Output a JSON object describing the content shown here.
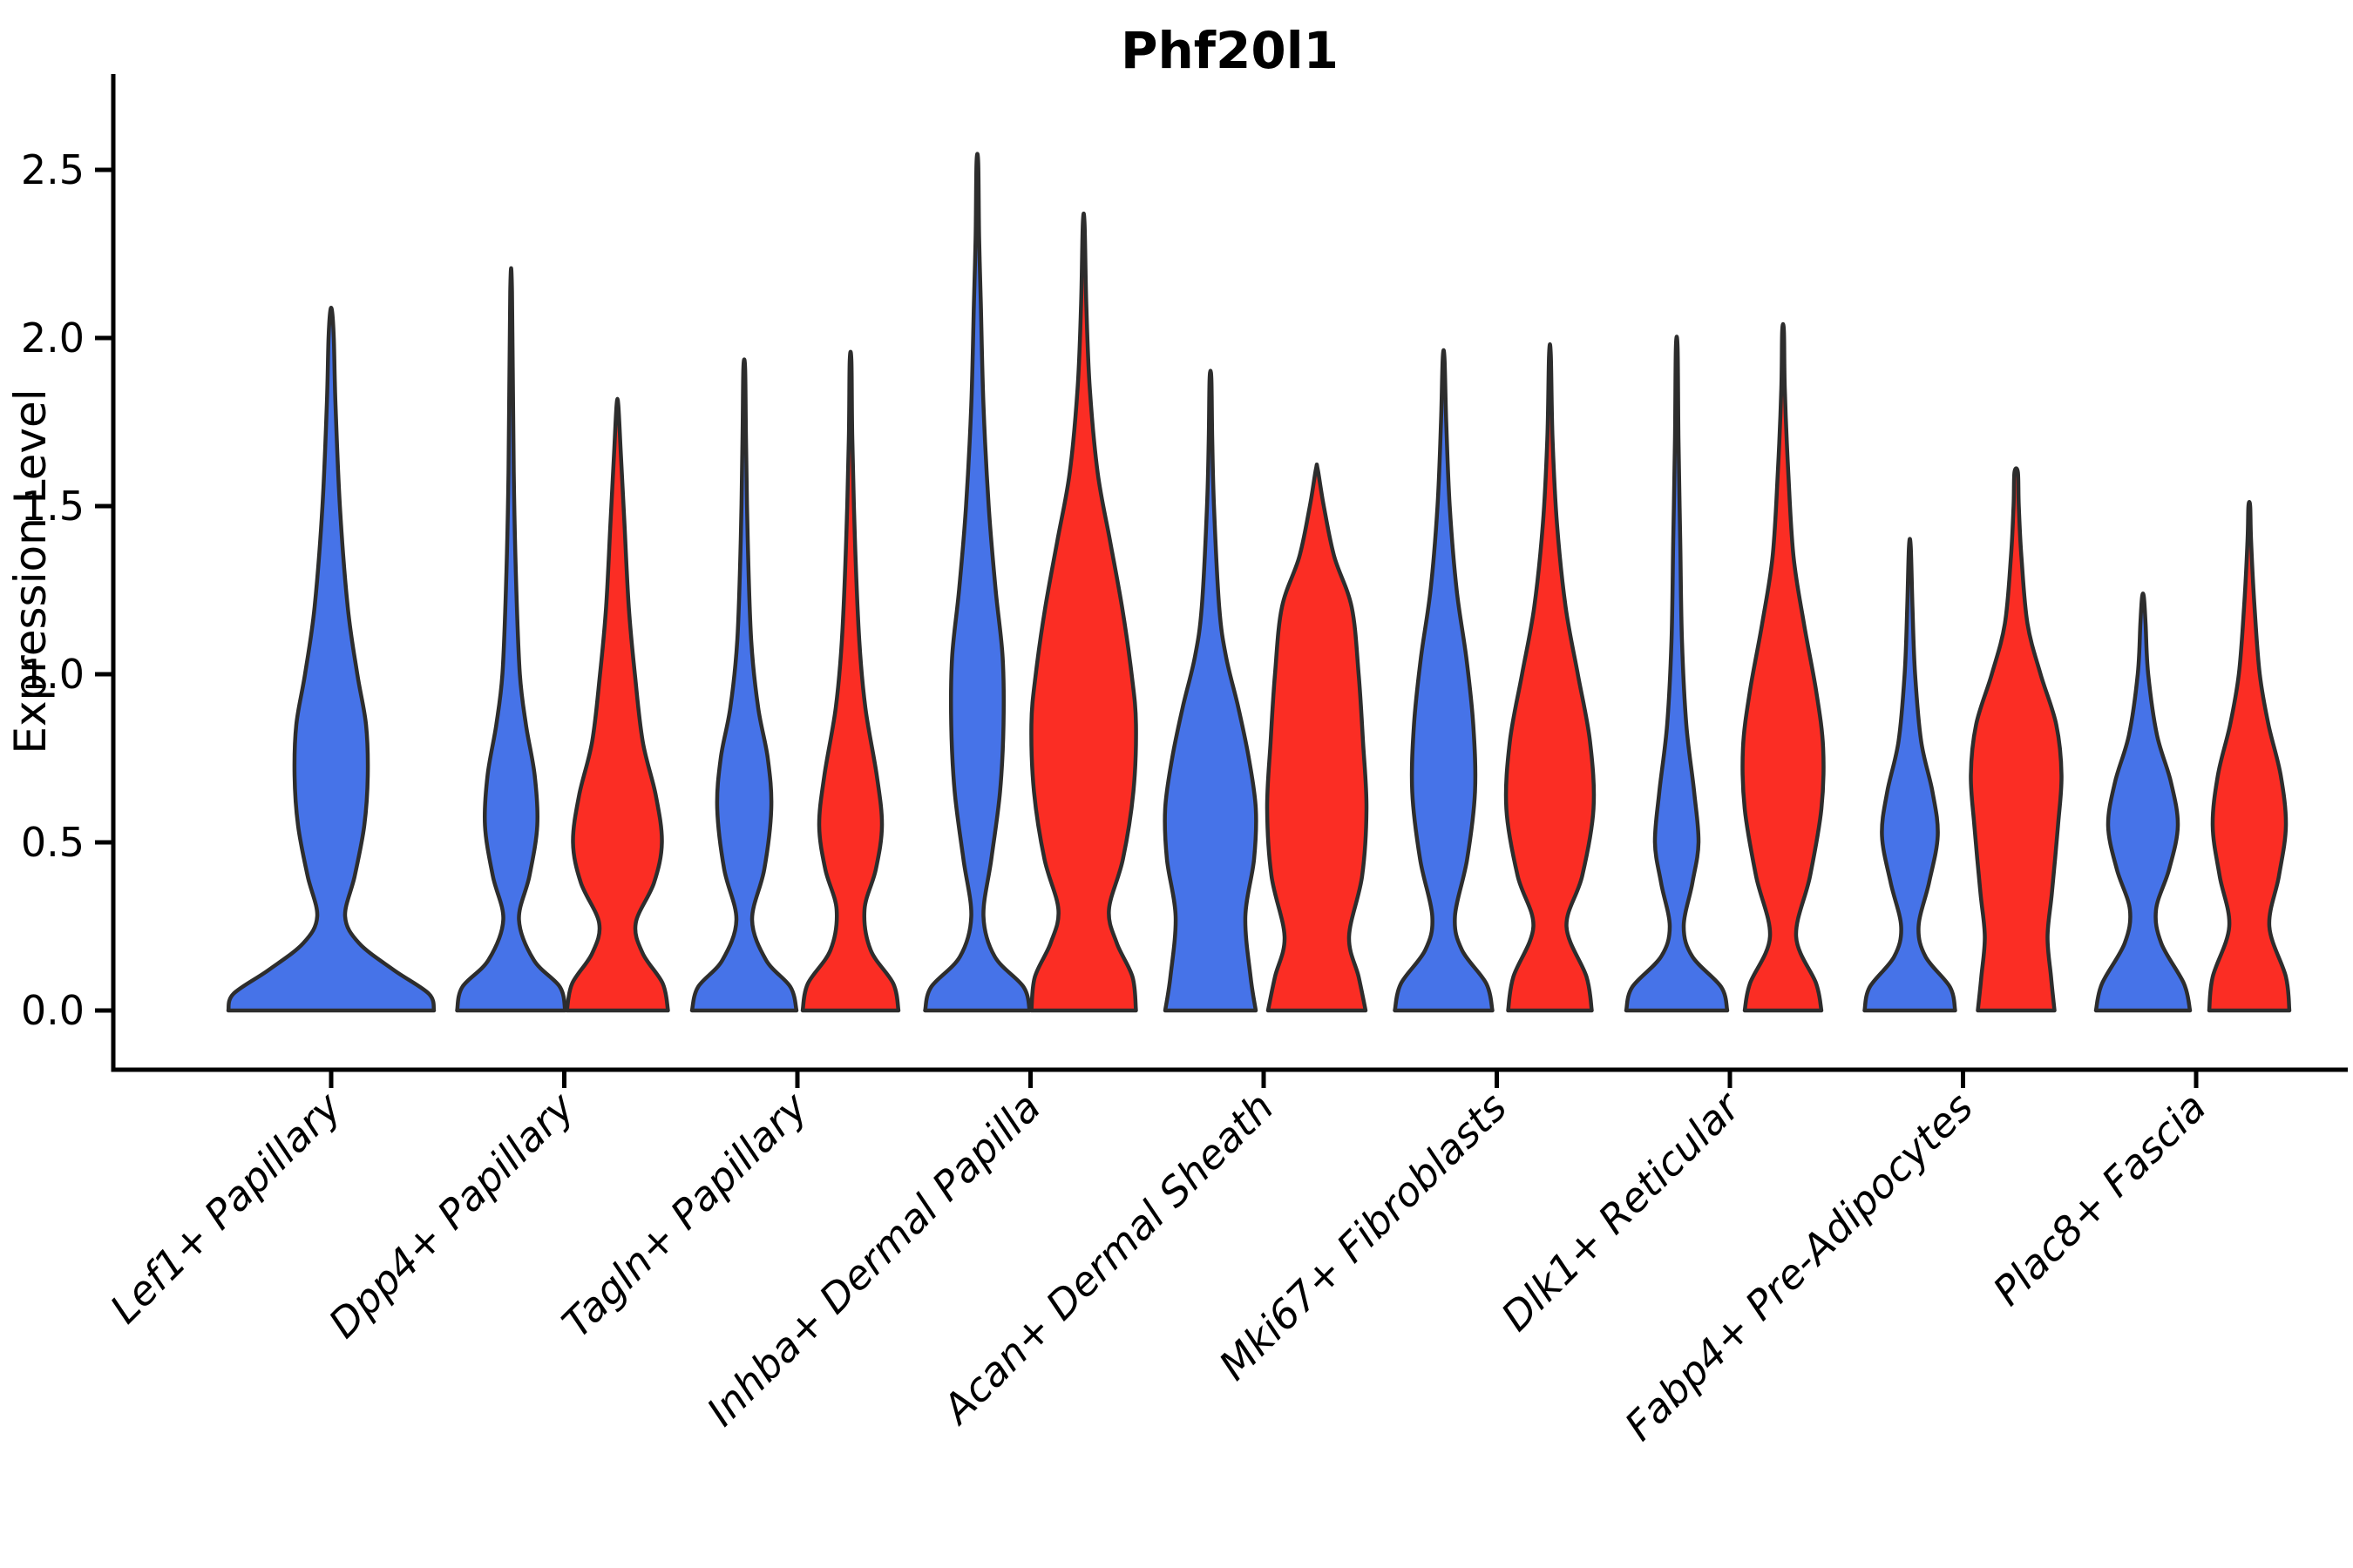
{
  "title": "Phf20l1",
  "y_axis": {
    "label": "Expression Level",
    "tick_labels": [
      "0.0",
      "0.5",
      "1.0",
      "1.5",
      "2.0",
      "2.5"
    ],
    "tick_values": [
      0.0,
      0.5,
      1.0,
      1.5,
      2.0,
      2.5
    ]
  },
  "x_axis": {
    "categories": [
      "Lef1+ Papillary",
      "Dpp4+ Papillary",
      "Tagln+ Papillary",
      "Inhba+ Dermal Papilla",
      "Acan+ Dermal Sheath",
      "Mki67+ Fibroblasts",
      "Dlk1+ Reticular",
      "Fabp4+ Pre-Adipocytes",
      "Plac8+ Fascia"
    ]
  },
  "colors": {
    "split_blue": "#4673E8",
    "split_red": "#FB2D24",
    "outline": "#2D2D2D",
    "axis": "#000000",
    "background": "#ffffff"
  },
  "chart_data": {
    "type": "violin",
    "title": "Phf20l1",
    "xlabel": "",
    "ylabel": "Expression Level",
    "ylim": [
      0,
      2.6
    ],
    "grid": false,
    "legend": "none",
    "categories": [
      "Lef1+ Papillary",
      "Dpp4+ Papillary",
      "Tagln+ Papillary",
      "Inhba+ Dermal Papilla",
      "Acan+ Dermal Sheath",
      "Mki67+ Fibroblasts",
      "Dlk1+ Reticular",
      "Fabp4+ Pre-Adipocytes",
      "Plac8+ Fascia"
    ],
    "splits": [
      "blue",
      "red"
    ],
    "violins": [
      {
        "category": "Lef1+ Papillary",
        "split": "blue",
        "single": true,
        "peak": 2.08,
        "profile": [
          [
            0,
            118
          ],
          [
            0.05,
            112
          ],
          [
            0.12,
            72
          ],
          [
            0.2,
            32
          ],
          [
            0.28,
            16
          ],
          [
            0.4,
            27
          ],
          [
            0.55,
            38
          ],
          [
            0.7,
            42
          ],
          [
            0.85,
            40
          ],
          [
            1.0,
            30
          ],
          [
            1.2,
            19
          ],
          [
            1.5,
            10
          ],
          [
            1.8,
            5
          ],
          [
            2.0,
            3
          ],
          [
            2.08,
            1
          ]
        ]
      },
      {
        "category": "Dpp4+ Papillary",
        "split": "blue",
        "single": false,
        "peak": 2.14,
        "profile": [
          [
            0,
            62
          ],
          [
            0.07,
            56
          ],
          [
            0.15,
            26
          ],
          [
            0.27,
            9
          ],
          [
            0.4,
            21
          ],
          [
            0.55,
            30
          ],
          [
            0.7,
            27
          ],
          [
            0.85,
            17
          ],
          [
            1.0,
            10
          ],
          [
            1.25,
            6
          ],
          [
            1.6,
            3
          ],
          [
            2.14,
            1
          ]
        ]
      },
      {
        "category": "Dpp4+ Papillary",
        "split": "red",
        "single": false,
        "peak": 1.8,
        "profile": [
          [
            0,
            58
          ],
          [
            0.08,
            52
          ],
          [
            0.17,
            29
          ],
          [
            0.26,
            21
          ],
          [
            0.38,
            42
          ],
          [
            0.5,
            51
          ],
          [
            0.64,
            44
          ],
          [
            0.8,
            29
          ],
          [
            1.0,
            20
          ],
          [
            1.2,
            13
          ],
          [
            1.45,
            8
          ],
          [
            1.65,
            4
          ],
          [
            1.8,
            1
          ]
        ]
      },
      {
        "category": "Tagln+ Papillary",
        "split": "blue",
        "single": false,
        "peak": 1.91,
        "profile": [
          [
            0,
            60
          ],
          [
            0.07,
            53
          ],
          [
            0.15,
            25
          ],
          [
            0.27,
            9
          ],
          [
            0.42,
            23
          ],
          [
            0.6,
            31
          ],
          [
            0.75,
            27
          ],
          [
            0.9,
            16
          ],
          [
            1.1,
            8
          ],
          [
            1.4,
            4
          ],
          [
            1.7,
            2
          ],
          [
            1.91,
            1
          ]
        ]
      },
      {
        "category": "Tagln+ Papillary",
        "split": "red",
        "single": false,
        "peak": 1.93,
        "profile": [
          [
            0,
            55
          ],
          [
            0.08,
            49
          ],
          [
            0.18,
            23
          ],
          [
            0.3,
            16
          ],
          [
            0.42,
            29
          ],
          [
            0.55,
            36
          ],
          [
            0.7,
            30
          ],
          [
            0.9,
            17
          ],
          [
            1.1,
            10
          ],
          [
            1.4,
            5
          ],
          [
            1.7,
            2
          ],
          [
            1.93,
            1
          ]
        ]
      },
      {
        "category": "Inhba+ Dermal Papilla",
        "split": "blue",
        "single": false,
        "peak": 2.52,
        "profile": [
          [
            0,
            60
          ],
          [
            0.07,
            53
          ],
          [
            0.16,
            20
          ],
          [
            0.28,
            7
          ],
          [
            0.45,
            16
          ],
          [
            0.65,
            26
          ],
          [
            0.85,
            30
          ],
          [
            1.05,
            29
          ],
          [
            1.25,
            21
          ],
          [
            1.5,
            13
          ],
          [
            1.8,
            7
          ],
          [
            2.1,
            4
          ],
          [
            2.3,
            2
          ],
          [
            2.52,
            1
          ]
        ]
      },
      {
        "category": "Inhba+ Dermal Papilla",
        "split": "red",
        "single": false,
        "peak": 2.34,
        "profile": [
          [
            0,
            60
          ],
          [
            0.1,
            56
          ],
          [
            0.2,
            38
          ],
          [
            0.3,
            29
          ],
          [
            0.45,
            45
          ],
          [
            0.65,
            57
          ],
          [
            0.85,
            60
          ],
          [
            1.0,
            55
          ],
          [
            1.2,
            44
          ],
          [
            1.4,
            30
          ],
          [
            1.6,
            16
          ],
          [
            1.85,
            7
          ],
          [
            2.1,
            3
          ],
          [
            2.34,
            1
          ]
        ]
      },
      {
        "category": "Acan+ Dermal Sheath",
        "split": "blue",
        "single": false,
        "peak": 1.88,
        "profile": [
          [
            0,
            52
          ],
          [
            0.1,
            46
          ],
          [
            0.28,
            40
          ],
          [
            0.45,
            50
          ],
          [
            0.6,
            52
          ],
          [
            0.75,
            44
          ],
          [
            0.9,
            32
          ],
          [
            1.05,
            18
          ],
          [
            1.2,
            10
          ],
          [
            1.5,
            4
          ],
          [
            1.7,
            2
          ],
          [
            1.88,
            1
          ]
        ]
      },
      {
        "category": "Acan+ Dermal Sheath",
        "split": "red",
        "single": false,
        "peak": 1.61,
        "profile": [
          [
            0,
            56
          ],
          [
            0.1,
            48
          ],
          [
            0.22,
            37
          ],
          [
            0.4,
            52
          ],
          [
            0.6,
            57
          ],
          [
            0.8,
            53
          ],
          [
            1.0,
            48
          ],
          [
            1.2,
            40
          ],
          [
            1.35,
            20
          ],
          [
            1.5,
            8
          ],
          [
            1.61,
            1
          ]
        ]
      },
      {
        "category": "Mki67+ Fibroblasts",
        "split": "blue",
        "single": false,
        "peak": 1.94,
        "profile": [
          [
            0,
            56
          ],
          [
            0.08,
            49
          ],
          [
            0.18,
            21
          ],
          [
            0.28,
            13
          ],
          [
            0.45,
            27
          ],
          [
            0.65,
            36
          ],
          [
            0.85,
            34
          ],
          [
            1.05,
            26
          ],
          [
            1.25,
            15
          ],
          [
            1.5,
            7
          ],
          [
            1.75,
            3
          ],
          [
            1.94,
            1
          ]
        ]
      },
      {
        "category": "Mki67+ Fibroblasts",
        "split": "red",
        "single": false,
        "peak": 1.95,
        "profile": [
          [
            0,
            48
          ],
          [
            0.1,
            42
          ],
          [
            0.25,
            19
          ],
          [
            0.4,
            37
          ],
          [
            0.6,
            50
          ],
          [
            0.8,
            46
          ],
          [
            1.0,
            32
          ],
          [
            1.2,
            18
          ],
          [
            1.45,
            8
          ],
          [
            1.7,
            3
          ],
          [
            1.95,
            1
          ]
        ]
      },
      {
        "category": "Dlk1+ Reticular",
        "split": "blue",
        "single": false,
        "peak": 1.97,
        "profile": [
          [
            0,
            58
          ],
          [
            0.07,
            51
          ],
          [
            0.16,
            18
          ],
          [
            0.25,
            8
          ],
          [
            0.38,
            18
          ],
          [
            0.5,
            25
          ],
          [
            0.65,
            20
          ],
          [
            0.85,
            11
          ],
          [
            1.1,
            6
          ],
          [
            1.4,
            4
          ],
          [
            1.7,
            2
          ],
          [
            1.97,
            1
          ]
        ]
      },
      {
        "category": "Dlk1+ Reticular",
        "split": "red",
        "single": false,
        "peak": 2.02,
        "profile": [
          [
            0,
            44
          ],
          [
            0.08,
            38
          ],
          [
            0.22,
            15
          ],
          [
            0.4,
            31
          ],
          [
            0.6,
            44
          ],
          [
            0.78,
            46
          ],
          [
            0.95,
            38
          ],
          [
            1.15,
            24
          ],
          [
            1.35,
            12
          ],
          [
            1.6,
            6
          ],
          [
            1.85,
            2
          ],
          [
            2.02,
            1
          ]
        ]
      },
      {
        "category": "Fabp4+ Pre-Adipocytes",
        "split": "blue",
        "single": false,
        "peak": 1.38,
        "profile": [
          [
            0,
            52
          ],
          [
            0.07,
            46
          ],
          [
            0.16,
            18
          ],
          [
            0.25,
            10
          ],
          [
            0.38,
            22
          ],
          [
            0.52,
            32
          ],
          [
            0.65,
            26
          ],
          [
            0.8,
            13
          ],
          [
            1.0,
            6
          ],
          [
            1.2,
            3
          ],
          [
            1.38,
            1
          ]
        ]
      },
      {
        "category": "Fabp4+ Pre-Adipocytes",
        "split": "red",
        "single": false,
        "peak": 1.6,
        "profile": [
          [
            0,
            44
          ],
          [
            0.1,
            40
          ],
          [
            0.22,
            36
          ],
          [
            0.35,
            41
          ],
          [
            0.55,
            48
          ],
          [
            0.7,
            52
          ],
          [
            0.85,
            46
          ],
          [
            1.0,
            28
          ],
          [
            1.15,
            13
          ],
          [
            1.35,
            6
          ],
          [
            1.5,
            3
          ],
          [
            1.6,
            2
          ]
        ]
      },
      {
        "category": "Plac8+ Fascia",
        "split": "blue",
        "single": false,
        "peak": 1.23,
        "profile": [
          [
            0,
            54
          ],
          [
            0.08,
            47
          ],
          [
            0.2,
            21
          ],
          [
            0.3,
            15
          ],
          [
            0.42,
            30
          ],
          [
            0.55,
            40
          ],
          [
            0.68,
            32
          ],
          [
            0.82,
            16
          ],
          [
            1.0,
            6
          ],
          [
            1.15,
            3
          ],
          [
            1.23,
            1
          ]
        ]
      },
      {
        "category": "Plac8+ Fascia",
        "split": "red",
        "single": false,
        "peak": 1.5,
        "profile": [
          [
            0,
            46
          ],
          [
            0.1,
            42
          ],
          [
            0.25,
            23
          ],
          [
            0.4,
            34
          ],
          [
            0.55,
            42
          ],
          [
            0.7,
            36
          ],
          [
            0.85,
            22
          ],
          [
            1.0,
            12
          ],
          [
            1.2,
            6
          ],
          [
            1.4,
            2
          ],
          [
            1.5,
            1
          ]
        ]
      }
    ]
  }
}
